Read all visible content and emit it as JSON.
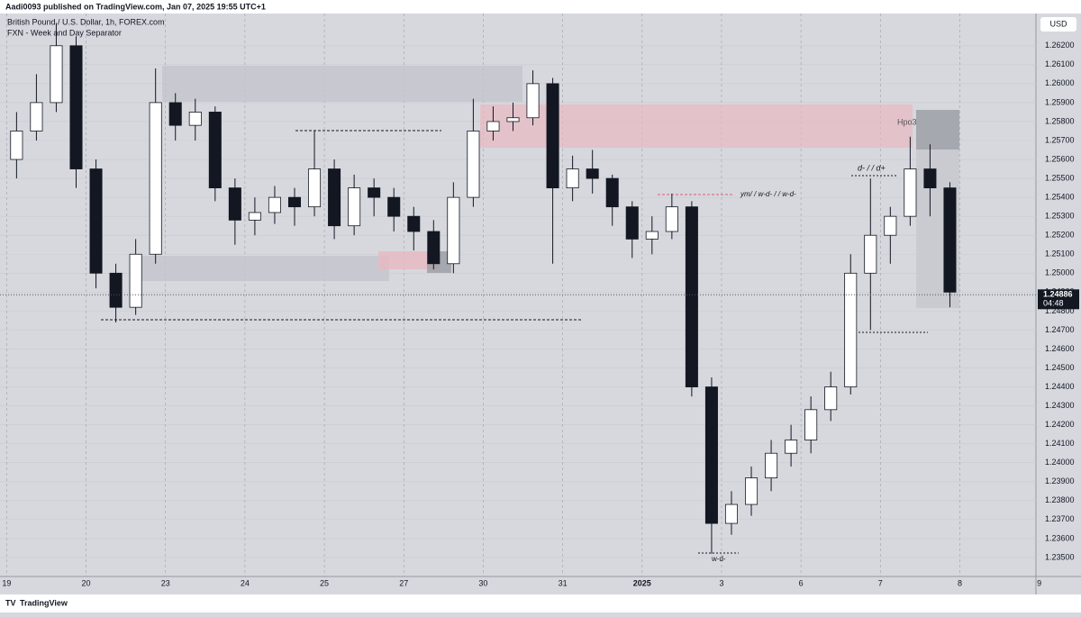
{
  "header": {
    "published": "Aadi0093 published on TradingView.com, Jan 07, 2025 19:55 UTC+1",
    "footer": "TradingView"
  },
  "chart_data": {
    "type": "candlestick",
    "title": "British Pound / U.S. Dollar, 1h, FOREX.com",
    "subtitle": "FXN - Week and Day Separator",
    "currency": "USD",
    "last_price": 1.24886,
    "countdown": "04:48",
    "annotations": [
      "Hpo3",
      "d- / / d+",
      "ym/ / w-d- / / w-d-",
      "w-d-"
    ],
    "x": [
      0,
      6,
      12,
      18,
      24,
      30,
      36,
      42,
      48,
      54,
      60,
      66,
      72,
      78,
      84,
      90,
      96,
      102,
      108,
      114,
      120,
      126,
      132,
      138,
      144,
      150,
      156,
      162,
      168,
      174,
      180,
      186,
      192,
      198,
      204,
      210,
      216,
      222,
      228,
      234,
      240,
      246,
      252,
      258,
      264,
      270,
      276,
      282
    ],
    "open": [
      1.256,
      1.2575,
      1.259,
      1.262,
      1.2555,
      1.25,
      1.2482,
      1.251,
      1.259,
      1.2578,
      1.2585,
      1.2545,
      1.2528,
      1.2532,
      1.254,
      1.2535,
      1.2555,
      1.2525,
      1.2545,
      1.254,
      1.253,
      1.2522,
      1.2505,
      1.254,
      1.2575,
      1.258,
      1.2582,
      1.26,
      1.2545,
      1.2555,
      1.255,
      1.2535,
      1.2518,
      1.2522,
      1.2535,
      1.244,
      1.2368,
      1.2378,
      1.2392,
      1.2405,
      1.2412,
      1.2428,
      1.244,
      1.25,
      1.252,
      1.253,
      1.2555,
      1.2545
    ],
    "high": [
      1.2585,
      1.2605,
      1.2632,
      1.2625,
      1.256,
      1.2505,
      1.2518,
      1.2608,
      1.2595,
      1.2592,
      1.2588,
      1.255,
      1.254,
      1.2546,
      1.2545,
      1.2575,
      1.256,
      1.2552,
      1.255,
      1.2545,
      1.2535,
      1.2528,
      1.2548,
      1.2592,
      1.2588,
      1.259,
      1.2607,
      1.2603,
      1.2562,
      1.2565,
      1.2552,
      1.2538,
      1.253,
      1.2542,
      1.2538,
      1.2445,
      1.2385,
      1.2398,
      1.2412,
      1.242,
      1.2435,
      1.2448,
      1.251,
      1.255,
      1.2535,
      1.2572,
      1.2568,
      1.2548
    ],
    "low": [
      1.255,
      1.257,
      1.2585,
      1.2545,
      1.2492,
      1.2474,
      1.2478,
      1.2505,
      1.257,
      1.257,
      1.2538,
      1.2515,
      1.252,
      1.2526,
      1.2525,
      1.253,
      1.2518,
      1.252,
      1.253,
      1.2522,
      1.2512,
      1.2502,
      1.25,
      1.2535,
      1.257,
      1.2575,
      1.2578,
      1.2505,
      1.2538,
      1.2542,
      1.2525,
      1.2508,
      1.251,
      1.2518,
      1.2435,
      1.2352,
      1.2362,
      1.2372,
      1.2385,
      1.2398,
      1.2405,
      1.2422,
      1.2436,
      1.247,
      1.2505,
      1.2525,
      1.253,
      1.2482
    ],
    "close": [
      1.2575,
      1.259,
      1.262,
      1.2555,
      1.25,
      1.2482,
      1.251,
      1.259,
      1.2578,
      1.2585,
      1.2545,
      1.2528,
      1.2532,
      1.254,
      1.2535,
      1.2555,
      1.2525,
      1.2545,
      1.254,
      1.253,
      1.2522,
      1.2505,
      1.254,
      1.2575,
      1.258,
      1.2582,
      1.26,
      1.2545,
      1.2555,
      1.255,
      1.2535,
      1.2518,
      1.2522,
      1.2535,
      1.244,
      1.2368,
      1.2378,
      1.2392,
      1.2405,
      1.2412,
      1.2428,
      1.244,
      1.25,
      1.252,
      1.253,
      1.2555,
      1.2545,
      1.249
    ],
    "up_color": "#ffffff",
    "down_color": "#131722",
    "xlim": [
      -2,
      311
    ],
    "xticks": [
      {
        "value": 0,
        "label": "19"
      },
      {
        "value": 24,
        "label": "20"
      },
      {
        "value": 48,
        "label": "23"
      },
      {
        "value": 72,
        "label": "24"
      },
      {
        "value": 96,
        "label": "25"
      },
      {
        "value": 120,
        "label": "27"
      },
      {
        "value": 144,
        "label": "30"
      },
      {
        "value": 168,
        "label": "31"
      },
      {
        "value": 192,
        "label": "2025"
      },
      {
        "value": 216,
        "label": "3"
      },
      {
        "value": 240,
        "label": "6"
      },
      {
        "value": 264,
        "label": "7"
      },
      {
        "value": 288,
        "label": "8"
      },
      {
        "value": 312,
        "label": "9"
      }
    ],
    "ylim": [
      1.234,
      1.2637
    ],
    "yticks": [
      {
        "value": 1.235,
        "label": "1.23500"
      },
      {
        "value": 1.236,
        "label": "1.23600"
      },
      {
        "value": 1.237,
        "label": "1.23700"
      },
      {
        "value": 1.238,
        "label": "1.23800"
      },
      {
        "value": 1.239,
        "label": "1.23900"
      },
      {
        "value": 1.24,
        "label": "1.24000"
      },
      {
        "value": 1.241,
        "label": "1.24100"
      },
      {
        "value": 1.242,
        "label": "1.24200"
      },
      {
        "value": 1.243,
        "label": "1.24300"
      },
      {
        "value": 1.244,
        "label": "1.24400"
      },
      {
        "value": 1.245,
        "label": "1.24500"
      },
      {
        "value": 1.246,
        "label": "1.24600"
      },
      {
        "value": 1.247,
        "label": "1.24700"
      },
      {
        "value": 1.248,
        "label": "1.24800"
      },
      {
        "value": 1.249,
        "label": "1.24900"
      },
      {
        "value": 1.25,
        "label": "1.25000"
      },
      {
        "value": 1.251,
        "label": "1.25100"
      },
      {
        "value": 1.252,
        "label": "1.25200"
      },
      {
        "value": 1.253,
        "label": "1.25300"
      },
      {
        "value": 1.254,
        "label": "1.25400"
      },
      {
        "value": 1.255,
        "label": "1.25500"
      },
      {
        "value": 1.256,
        "label": "1.25600"
      },
      {
        "value": 1.257,
        "label": "1.25700"
      },
      {
        "value": 1.258,
        "label": "1.25800"
      },
      {
        "value": 1.259,
        "label": "1.25900"
      },
      {
        "value": 1.26,
        "label": "1.26000"
      },
      {
        "value": 1.261,
        "label": "1.26100"
      },
      {
        "value": 1.262,
        "label": "1.26200"
      }
    ],
    "grid": true
  }
}
